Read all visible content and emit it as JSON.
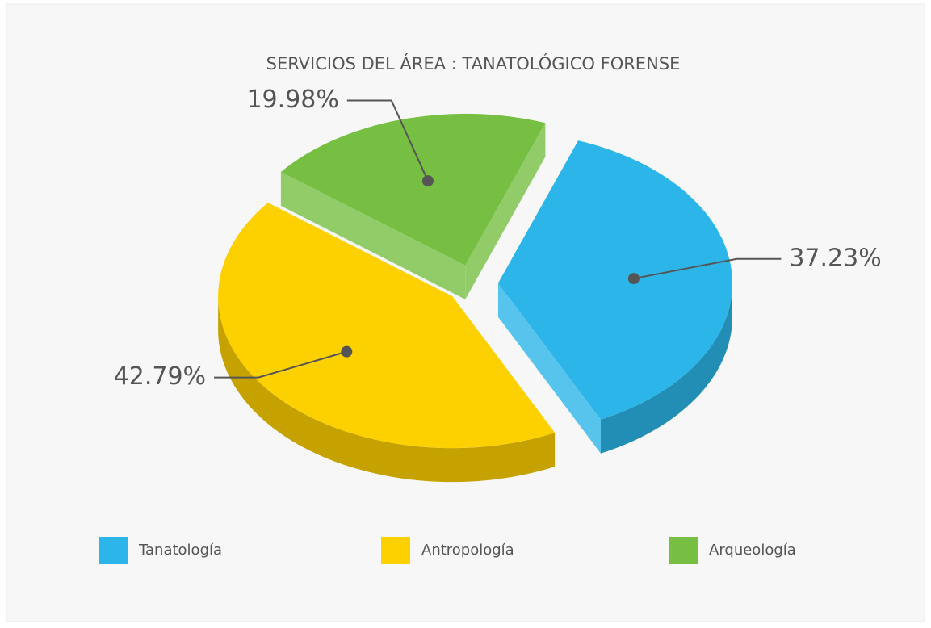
{
  "chart_data": {
    "type": "pie",
    "title": "SERVICIOS DEL ÁREA : TANATOLÓGICO FORENSE",
    "categories": [
      "Tanatología",
      "Antropología",
      "Arqueología"
    ],
    "values": [
      37.23,
      42.79,
      19.98
    ],
    "value_labels": [
      "37.23%",
      "42.79%",
      "19.98%"
    ],
    "colors": [
      "#2cb5e8",
      "#fdd000",
      "#76bf43"
    ],
    "legend": "bottom"
  }
}
